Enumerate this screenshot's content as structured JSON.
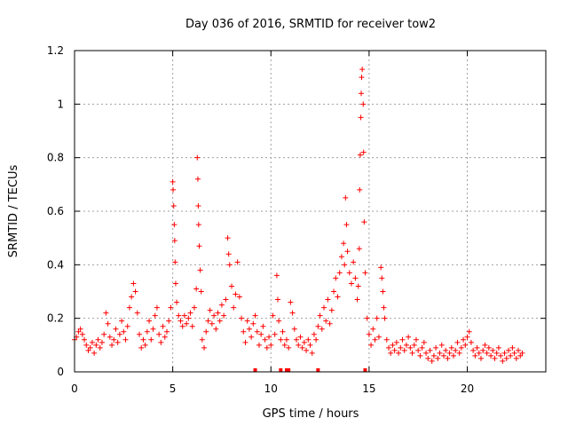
{
  "chart_data": {
    "type": "scatter",
    "title": "Day 036 of 2016, SRMTID for receiver tow2",
    "xlabel": "GPS time / hours",
    "ylabel": "SRMTID / TECUs",
    "xlim": [
      0,
      24
    ],
    "ylim": [
      0,
      1.2
    ],
    "grid": true,
    "marker": "plus",
    "color": "#ff0000",
    "x_ticks": [
      {
        "value": 0,
        "label": "0"
      },
      {
        "value": 5,
        "label": "5"
      },
      {
        "value": 10,
        "label": "10"
      },
      {
        "value": 15,
        "label": "15"
      },
      {
        "value": 20,
        "label": "20"
      }
    ],
    "y_ticks": [
      {
        "value": 0,
        "label": "0"
      },
      {
        "value": 0.2,
        "label": "0.2"
      },
      {
        "value": 0.4,
        "label": "0.4"
      },
      {
        "value": 0.6,
        "label": "0.6"
      },
      {
        "value": 0.8,
        "label": "0.8"
      },
      {
        "value": 1.0,
        "label": "1"
      },
      {
        "value": 1.2,
        "label": "1.2"
      }
    ],
    "series": [
      {
        "name": "SRMTID",
        "points": [
          [
            0.0,
            0.12
          ],
          [
            0.1,
            0.13
          ],
          [
            0.2,
            0.15
          ],
          [
            0.3,
            0.16
          ],
          [
            0.4,
            0.14
          ],
          [
            0.5,
            0.12
          ],
          [
            0.6,
            0.1
          ],
          [
            0.7,
            0.08
          ],
          [
            0.8,
            0.09
          ],
          [
            0.9,
            0.11
          ],
          [
            1.0,
            0.07
          ],
          [
            1.1,
            0.1
          ],
          [
            1.2,
            0.12
          ],
          [
            1.3,
            0.09
          ],
          [
            1.4,
            0.11
          ],
          [
            1.5,
            0.14
          ],
          [
            1.6,
            0.22
          ],
          [
            1.7,
            0.18
          ],
          [
            1.8,
            0.13
          ],
          [
            1.9,
            0.1
          ],
          [
            2.0,
            0.12
          ],
          [
            2.1,
            0.16
          ],
          [
            2.2,
            0.11
          ],
          [
            2.3,
            0.14
          ],
          [
            2.4,
            0.19
          ],
          [
            2.5,
            0.15
          ],
          [
            2.6,
            0.12
          ],
          [
            2.7,
            0.17
          ],
          [
            2.8,
            0.24
          ],
          [
            2.9,
            0.28
          ],
          [
            3.0,
            0.33
          ],
          [
            3.1,
            0.3
          ],
          [
            3.2,
            0.22
          ],
          [
            3.3,
            0.14
          ],
          [
            3.4,
            0.09
          ],
          [
            3.5,
            0.12
          ],
          [
            3.6,
            0.1
          ],
          [
            3.7,
            0.15
          ],
          [
            3.8,
            0.19
          ],
          [
            3.9,
            0.12
          ],
          [
            4.0,
            0.16
          ],
          [
            4.1,
            0.21
          ],
          [
            4.2,
            0.24
          ],
          [
            4.3,
            0.14
          ],
          [
            4.4,
            0.11
          ],
          [
            4.5,
            0.17
          ],
          [
            4.6,
            0.13
          ],
          [
            4.7,
            0.15
          ],
          [
            4.8,
            0.19
          ],
          [
            4.9,
            0.24
          ],
          [
            5.0,
            0.71
          ],
          [
            5.02,
            0.68
          ],
          [
            5.05,
            0.62
          ],
          [
            5.08,
            0.55
          ],
          [
            5.1,
            0.49
          ],
          [
            5.12,
            0.41
          ],
          [
            5.15,
            0.33
          ],
          [
            5.2,
            0.26
          ],
          [
            5.3,
            0.21
          ],
          [
            5.4,
            0.19
          ],
          [
            5.5,
            0.17
          ],
          [
            5.6,
            0.21
          ],
          [
            5.7,
            0.18
          ],
          [
            5.8,
            0.2
          ],
          [
            5.9,
            0.22
          ],
          [
            6.0,
            0.17
          ],
          [
            6.1,
            0.24
          ],
          [
            6.2,
            0.31
          ],
          [
            6.25,
            0.8
          ],
          [
            6.28,
            0.72
          ],
          [
            6.3,
            0.62
          ],
          [
            6.32,
            0.55
          ],
          [
            6.35,
            0.47
          ],
          [
            6.4,
            0.38
          ],
          [
            6.45,
            0.3
          ],
          [
            6.5,
            0.12
          ],
          [
            6.6,
            0.09
          ],
          [
            6.7,
            0.15
          ],
          [
            6.8,
            0.19
          ],
          [
            6.9,
            0.23
          ],
          [
            7.0,
            0.18
          ],
          [
            7.1,
            0.21
          ],
          [
            7.2,
            0.16
          ],
          [
            7.3,
            0.22
          ],
          [
            7.4,
            0.19
          ],
          [
            7.5,
            0.25
          ],
          [
            7.6,
            0.21
          ],
          [
            7.7,
            0.27
          ],
          [
            7.8,
            0.5
          ],
          [
            7.85,
            0.44
          ],
          [
            7.9,
            0.4
          ],
          [
            8.0,
            0.32
          ],
          [
            8.1,
            0.24
          ],
          [
            8.2,
            0.29
          ],
          [
            8.3,
            0.41
          ],
          [
            8.4,
            0.28
          ],
          [
            8.5,
            0.2
          ],
          [
            8.6,
            0.15
          ],
          [
            8.7,
            0.11
          ],
          [
            8.8,
            0.19
          ],
          [
            8.9,
            0.16
          ],
          [
            9.0,
            0.13
          ],
          [
            9.1,
            0.18
          ],
          [
            9.2,
            0.21
          ],
          [
            9.3,
            0.15
          ],
          [
            9.4,
            0.1
          ],
          [
            9.5,
            0.14
          ],
          [
            9.6,
            0.17
          ],
          [
            9.7,
            0.12
          ],
          [
            9.8,
            0.09
          ],
          [
            9.9,
            0.13
          ],
          [
            10.0,
            0.1
          ],
          [
            10.1,
            0.21
          ],
          [
            10.2,
            0.14
          ],
          [
            10.3,
            0.36
          ],
          [
            10.35,
            0.27
          ],
          [
            10.4,
            0.19
          ],
          [
            10.5,
            0.12
          ],
          [
            10.6,
            0.15
          ],
          [
            10.7,
            0.1
          ],
          [
            10.8,
            0.12
          ],
          [
            10.9,
            0.09
          ],
          [
            11.0,
            0.26
          ],
          [
            11.1,
            0.22
          ],
          [
            11.2,
            0.16
          ],
          [
            11.3,
            0.12
          ],
          [
            11.4,
            0.1
          ],
          [
            11.5,
            0.13
          ],
          [
            11.6,
            0.09
          ],
          [
            11.7,
            0.11
          ],
          [
            11.8,
            0.08
          ],
          [
            11.9,
            0.12
          ],
          [
            12.0,
            0.1
          ],
          [
            12.1,
            0.07
          ],
          [
            12.2,
            0.14
          ],
          [
            12.3,
            0.12
          ],
          [
            12.4,
            0.17
          ],
          [
            12.5,
            0.21
          ],
          [
            12.6,
            0.16
          ],
          [
            12.7,
            0.24
          ],
          [
            12.8,
            0.19
          ],
          [
            12.9,
            0.27
          ],
          [
            13.0,
            0.18
          ],
          [
            13.1,
            0.23
          ],
          [
            13.2,
            0.3
          ],
          [
            13.3,
            0.35
          ],
          [
            13.4,
            0.28
          ],
          [
            13.5,
            0.37
          ],
          [
            13.6,
            0.43
          ],
          [
            13.7,
            0.48
          ],
          [
            13.75,
            0.4
          ],
          [
            13.8,
            0.65
          ],
          [
            13.85,
            0.55
          ],
          [
            13.9,
            0.45
          ],
          [
            14.0,
            0.37
          ],
          [
            14.1,
            0.33
          ],
          [
            14.2,
            0.41
          ],
          [
            14.3,
            0.35
          ],
          [
            14.4,
            0.27
          ],
          [
            14.45,
            0.32
          ],
          [
            14.5,
            0.46
          ],
          [
            14.52,
            0.68
          ],
          [
            14.55,
            0.81
          ],
          [
            14.58,
            0.95
          ],
          [
            14.6,
            1.04
          ],
          [
            14.62,
            1.1
          ],
          [
            14.65,
            1.13
          ],
          [
            14.7,
            1.0
          ],
          [
            14.72,
            0.82
          ],
          [
            14.75,
            0.56
          ],
          [
            14.8,
            0.37
          ],
          [
            14.9,
            0.2
          ],
          [
            15.0,
            0.14
          ],
          [
            15.1,
            0.1
          ],
          [
            15.2,
            0.16
          ],
          [
            15.3,
            0.12
          ],
          [
            15.4,
            0.2
          ],
          [
            15.5,
            0.13
          ],
          [
            15.6,
            0.39
          ],
          [
            15.65,
            0.35
          ],
          [
            15.7,
            0.3
          ],
          [
            15.75,
            0.24
          ],
          [
            15.8,
            0.2
          ],
          [
            15.9,
            0.12
          ],
          [
            16.0,
            0.09
          ],
          [
            16.1,
            0.07
          ],
          [
            16.2,
            0.1
          ],
          [
            16.3,
            0.08
          ],
          [
            16.4,
            0.11
          ],
          [
            16.5,
            0.07
          ],
          [
            16.6,
            0.09
          ],
          [
            16.7,
            0.12
          ],
          [
            16.8,
            0.08
          ],
          [
            16.9,
            0.1
          ],
          [
            17.0,
            0.13
          ],
          [
            17.1,
            0.09
          ],
          [
            17.2,
            0.07
          ],
          [
            17.3,
            0.1
          ],
          [
            17.4,
            0.12
          ],
          [
            17.5,
            0.08
          ],
          [
            17.6,
            0.06
          ],
          [
            17.7,
            0.09
          ],
          [
            17.8,
            0.11
          ],
          [
            17.9,
            0.07
          ],
          [
            18.0,
            0.05
          ],
          [
            18.1,
            0.08
          ],
          [
            18.2,
            0.04
          ],
          [
            18.3,
            0.06
          ],
          [
            18.4,
            0.09
          ],
          [
            18.5,
            0.05
          ],
          [
            18.6,
            0.07
          ],
          [
            18.7,
            0.1
          ],
          [
            18.8,
            0.06
          ],
          [
            18.9,
            0.08
          ],
          [
            19.0,
            0.05
          ],
          [
            19.1,
            0.07
          ],
          [
            19.2,
            0.09
          ],
          [
            19.3,
            0.06
          ],
          [
            19.4,
            0.08
          ],
          [
            19.5,
            0.11
          ],
          [
            19.6,
            0.07
          ],
          [
            19.7,
            0.09
          ],
          [
            19.8,
            0.12
          ],
          [
            19.9,
            0.1
          ],
          [
            20.0,
            0.13
          ],
          [
            20.1,
            0.15
          ],
          [
            20.2,
            0.11
          ],
          [
            20.3,
            0.08
          ],
          [
            20.4,
            0.06
          ],
          [
            20.5,
            0.09
          ],
          [
            20.6,
            0.07
          ],
          [
            20.7,
            0.05
          ],
          [
            20.8,
            0.08
          ],
          [
            20.9,
            0.1
          ],
          [
            21.0,
            0.07
          ],
          [
            21.1,
            0.09
          ],
          [
            21.2,
            0.06
          ],
          [
            21.3,
            0.08
          ],
          [
            21.4,
            0.05
          ],
          [
            21.5,
            0.07
          ],
          [
            21.6,
            0.09
          ],
          [
            21.7,
            0.06
          ],
          [
            21.8,
            0.04
          ],
          [
            21.9,
            0.07
          ],
          [
            22.0,
            0.05
          ],
          [
            22.1,
            0.08
          ],
          [
            22.2,
            0.06
          ],
          [
            22.3,
            0.09
          ],
          [
            22.4,
            0.07
          ],
          [
            22.5,
            0.05
          ],
          [
            22.6,
            0.08
          ],
          [
            22.7,
            0.06
          ],
          [
            22.8,
            0.07
          ]
        ]
      }
    ],
    "zero_flags_x": [
      9.2,
      10.5,
      10.8,
      10.9,
      12.4,
      14.8
    ]
  }
}
